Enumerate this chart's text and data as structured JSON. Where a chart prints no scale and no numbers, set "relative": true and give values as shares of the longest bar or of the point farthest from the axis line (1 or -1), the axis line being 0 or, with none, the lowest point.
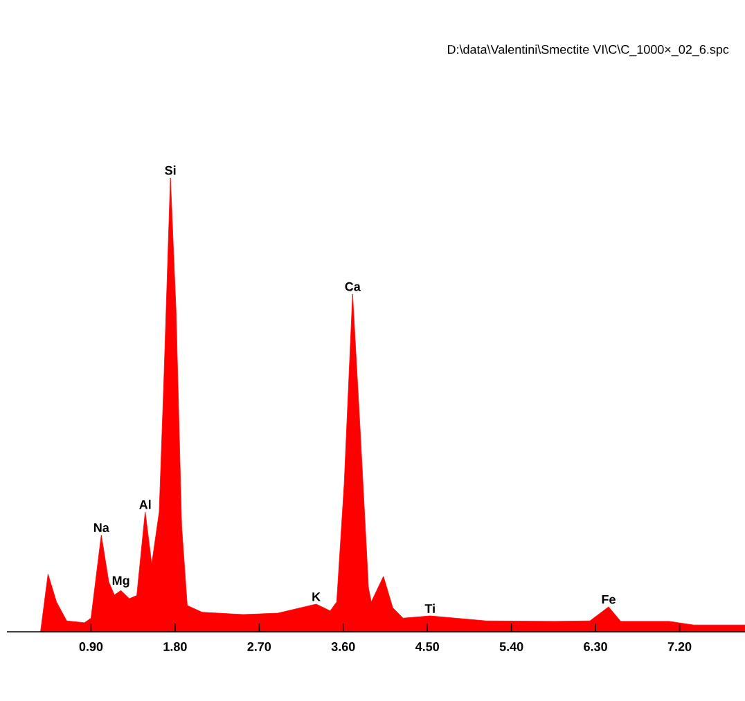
{
  "chart_data": {
    "type": "area",
    "title": "D:\\data\\Valentini\\Smectite VI\\C\\C_1000×_02_6.spc",
    "relative": true,
    "color": "#ff0000",
    "x": [
      0.36,
      0.44,
      0.53,
      0.64,
      0.83,
      0.9,
      1.01,
      1.09,
      1.15,
      1.22,
      1.31,
      1.39,
      1.48,
      1.55,
      1.63,
      1.68,
      1.75,
      1.81,
      1.87,
      1.93,
      2.09,
      2.53,
      2.9,
      3.31,
      3.46,
      3.53,
      3.61,
      3.7,
      3.78,
      3.87,
      3.9,
      4.03,
      4.13,
      4.24,
      4.53,
      5.13,
      5.87,
      6.24,
      6.44,
      6.57,
      7.09,
      7.35,
      7.9
    ],
    "values": [
      0,
      0.127,
      0.066,
      0.024,
      0.02,
      0.03,
      0.213,
      0.11,
      0.081,
      0.091,
      0.073,
      0.08,
      0.264,
      0.149,
      0.264,
      0.553,
      1.0,
      0.706,
      0.233,
      0.058,
      0.043,
      0.038,
      0.041,
      0.061,
      0.046,
      0.066,
      0.325,
      0.744,
      0.447,
      0.096,
      0.066,
      0.122,
      0.053,
      0.03,
      0.035,
      0.024,
      0.023,
      0.024,
      0.055,
      0.023,
      0.023,
      0.015,
      0.015
    ],
    "xlim": [
      0,
      7.9
    ],
    "xticks": [
      {
        "value": 0.9,
        "label": "0.90"
      },
      {
        "value": 1.8,
        "label": "1.80"
      },
      {
        "value": 2.7,
        "label": "2.70"
      },
      {
        "value": 3.6,
        "label": "3.60"
      },
      {
        "value": 4.5,
        "label": "4.50"
      },
      {
        "value": 5.4,
        "label": "5.40"
      },
      {
        "value": 6.3,
        "label": "6.30"
      },
      {
        "value": 7.2,
        "label": "7.20"
      }
    ],
    "annotations": [
      {
        "text": "Na",
        "x": 1.01,
        "y": 0.213
      },
      {
        "text": "Mg",
        "x": 1.22,
        "y": 0.091
      },
      {
        "text": "Al",
        "x": 1.48,
        "y": 0.264
      },
      {
        "text": "Si",
        "x": 1.75,
        "y": 1.0
      },
      {
        "text": "K",
        "x": 3.31,
        "y": 0.061
      },
      {
        "text": "Ca",
        "x": 3.7,
        "y": 0.744
      },
      {
        "text": "Ti",
        "x": 4.53,
        "y": 0.035
      },
      {
        "text": "Fe",
        "x": 6.44,
        "y": 0.055
      }
    ]
  }
}
